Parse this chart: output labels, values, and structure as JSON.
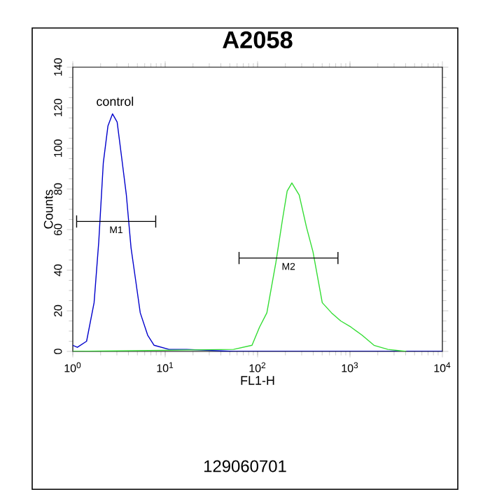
{
  "chart_data": {
    "type": "line",
    "title": "A2058",
    "xlabel": "FL1-H",
    "ylabel": "Counts",
    "log": "x",
    "grid": false,
    "marker": "none",
    "xlim": [
      1,
      10000
    ],
    "xticks": [
      {
        "value": 1,
        "label": "10$^{0}$"
      },
      {
        "value": 10,
        "label": "10$^{1}$"
      },
      {
        "value": 100,
        "label": "10$^{2}$"
      },
      {
        "value": 1000,
        "label": "10$^{3}$"
      },
      {
        "value": 10000,
        "label": "10$^{4}$"
      }
    ],
    "ylim": [
      0,
      140
    ],
    "yticks": [
      0,
      20,
      40,
      60,
      80,
      100,
      120,
      140
    ],
    "series": [
      {
        "name": "control",
        "color": "#0000cc",
        "x": [
          1,
          1.12,
          1.41,
          1.7,
          1.91,
          2.14,
          2.4,
          2.69,
          3.02,
          3.39,
          3.8,
          4.27,
          4.79,
          5.37,
          6.46,
          7.59,
          11,
          17,
          55,
          10000
        ],
        "values": [
          3,
          2,
          5,
          24,
          54,
          93,
          111,
          117,
          113,
          95,
          77,
          51,
          35,
          19,
          8,
          3,
          1,
          1,
          0,
          0
        ]
      },
      {
        "color": "#33dd33",
        "x": [
          1,
          55,
          87,
          105,
          126,
          158,
          186,
          209,
          235,
          282,
          339,
          398,
          501,
          631,
          794,
          1023,
          1349,
          1820,
          2570,
          4070
        ],
        "values": [
          0,
          1,
          3,
          12,
          19,
          44,
          65,
          79,
          83,
          77,
          61,
          49,
          24,
          19,
          15,
          12,
          8,
          3,
          1,
          0
        ]
      },
      {
        "name": "M1",
        "color": "#000000",
        "x": [
          1.1,
          7.9
        ],
        "values": [
          64,
          64
        ],
        "errors": [
          3,
          3
        ]
      },
      {
        "name": "M2",
        "color": "#000000",
        "x": [
          63,
          741
        ],
        "values": [
          46,
          46
        ],
        "errors": [
          3,
          3
        ]
      }
    ],
    "annotations": [
      "129060701"
    ]
  }
}
